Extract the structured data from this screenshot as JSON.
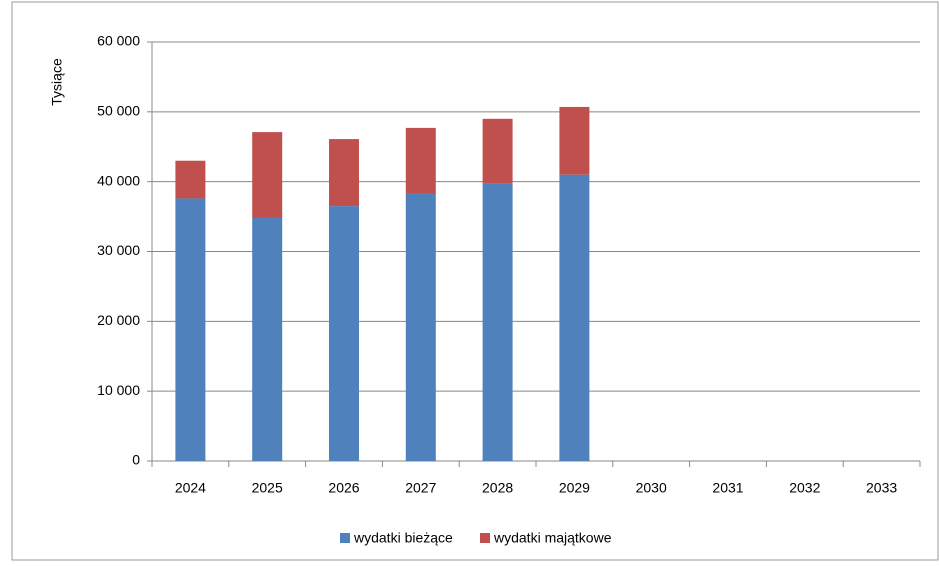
{
  "chart_data": {
    "type": "stacked_bar",
    "y_label": "Tysiące",
    "categories": [
      "2024",
      "2025",
      "2026",
      "2027",
      "2028",
      "2029",
      "2030",
      "2031",
      "2032",
      "2033"
    ],
    "series": [
      {
        "name": "wydatki bieżące",
        "color": "#4f81bd",
        "values": [
          37600,
          34800,
          36500,
          38300,
          39700,
          41000,
          null,
          null,
          null,
          null
        ]
      },
      {
        "name": "wydatki majątkowe",
        "color": "#c0504d",
        "values": [
          5400,
          12300,
          9600,
          9400,
          9300,
          9700,
          null,
          null,
          null,
          null
        ]
      }
    ],
    "ylim": [
      0,
      60000
    ],
    "yticks": [
      0,
      {
        "value": 10000,
        "label": "10 000"
      },
      {
        "value": 20000,
        "label": "20 000"
      },
      {
        "value": 30000,
        "label": "30 000"
      },
      {
        "value": 40000,
        "label": "40 000"
      },
      {
        "value": 50000,
        "label": "50 000"
      },
      {
        "value": 60000,
        "label": "60 000"
      }
    ],
    "grid": true,
    "legend": "bottom"
  }
}
